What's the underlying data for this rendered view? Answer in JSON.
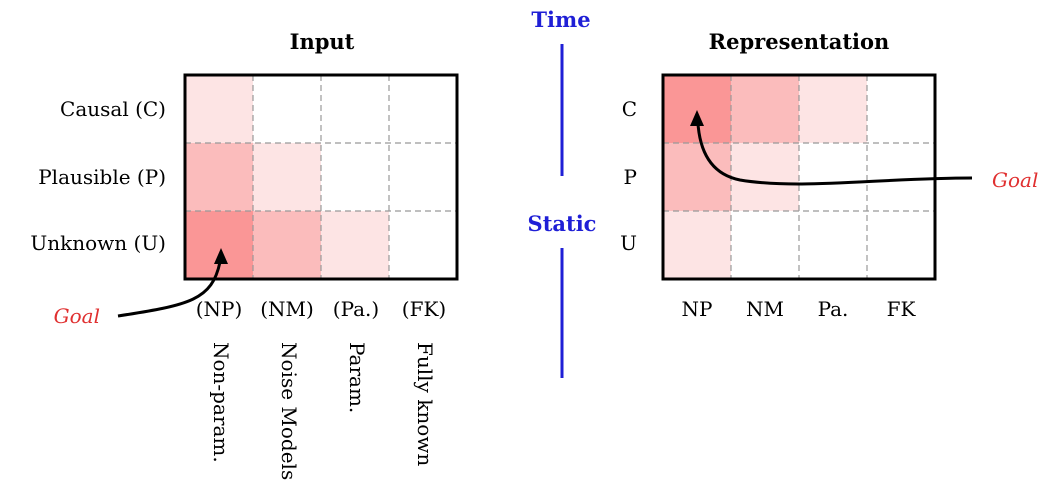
{
  "input_panel": {
    "title": "Input",
    "rows": [
      "Causal (C)",
      "Plausible (P)",
      "Unknown (U)"
    ],
    "cols": [
      "(NP)",
      "(NM)",
      "(Pa.)",
      "(FK)"
    ],
    "col_full": [
      "Non-param.",
      "Noise Models",
      "Param.",
      "Fully known"
    ],
    "intensity": [
      [
        1,
        0,
        0,
        0
      ],
      [
        2,
        1,
        0,
        0
      ],
      [
        3,
        2,
        1,
        0
      ]
    ],
    "goal": "Goal"
  },
  "rep_panel": {
    "title": "Representation",
    "rows": [
      "C",
      "P",
      "U"
    ],
    "cols": [
      "NP",
      "NM",
      "Pa.",
      "FK"
    ],
    "intensity": [
      [
        3,
        2,
        1,
        0
      ],
      [
        2,
        1,
        0,
        0
      ],
      [
        1,
        0,
        0,
        0
      ]
    ],
    "goal": "Goal"
  },
  "axis": {
    "time": "Time",
    "static": "Static"
  },
  "colors": {
    "level1": "#fde4e4",
    "level2": "#fbbcbc",
    "level3": "#fa9696",
    "goal": "#e03030",
    "axis": "#1f1fd6"
  }
}
